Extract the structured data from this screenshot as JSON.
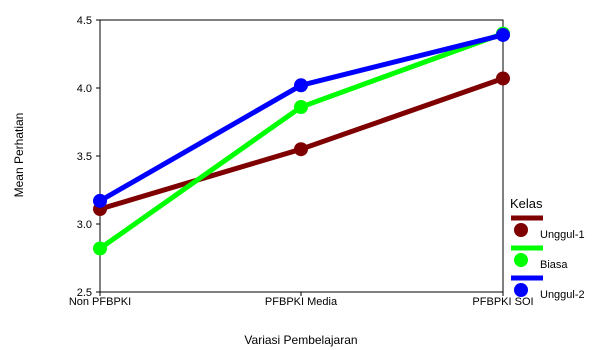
{
  "chart_data": {
    "type": "line",
    "xlabel": "Variasi Pembelajaran",
    "ylabel": "Mean Perhatian",
    "categories": [
      "Non PFBPKI",
      "PFBPKI Media",
      "PFBPKI SOI"
    ],
    "ylim": [
      2.5,
      4.5
    ],
    "yticks": [
      "2.5",
      "3.0",
      "3.5",
      "4.0",
      "4.5"
    ],
    "grid": false,
    "legend": {
      "title": "Kelas",
      "position": "right"
    },
    "series": [
      {
        "name": "Unggul-1",
        "color": "#7f0000",
        "values": [
          3.11,
          3.55,
          4.07
        ]
      },
      {
        "name": "Biasa",
        "color": "#00ff00",
        "values": [
          2.82,
          3.86,
          4.4
        ]
      },
      {
        "name": "Unggul-2",
        "color": "#0000ff",
        "values": [
          3.17,
          4.02,
          4.39
        ]
      }
    ]
  }
}
